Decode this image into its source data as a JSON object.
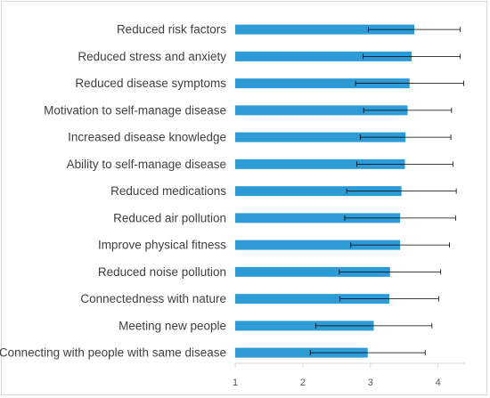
{
  "chart_data": {
    "type": "bar",
    "orientation": "horizontal",
    "categories": [
      "Reduced risk factors",
      "Reduced stress and anxiety",
      "Reduced disease symptoms",
      "Motivation to self-manage disease",
      "Increased disease knowledge",
      "Ability to self-manage disease",
      "Reduced medications",
      "Reduced air pollution",
      "Improve physical fitness",
      "Reduced noise pollution",
      "Connectedness with nature",
      "Meeting new people",
      "Connecting with people with same disease"
    ],
    "values": [
      3.65,
      3.61,
      3.58,
      3.55,
      3.52,
      3.51,
      3.46,
      3.44,
      3.44,
      3.29,
      3.28,
      3.05,
      2.96
    ],
    "error": [
      0.68,
      0.72,
      0.8,
      0.65,
      0.67,
      0.71,
      0.81,
      0.82,
      0.73,
      0.75,
      0.73,
      0.86,
      0.85
    ],
    "xlim": [
      1,
      4.4
    ],
    "xticks": [
      1,
      2,
      3,
      4
    ],
    "bar_color": "#2e9bd6",
    "error_color": "#000000",
    "grid": false,
    "title": "",
    "xlabel": "",
    "ylabel": ""
  }
}
